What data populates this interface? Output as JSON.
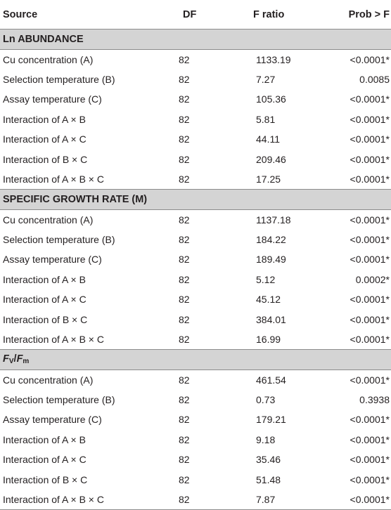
{
  "headers": {
    "source": "Source",
    "df": "DF",
    "f_ratio": "F ratio",
    "prob": "Prob > F"
  },
  "sections": [
    {
      "title": "Ln ABUNDANCE",
      "rows": [
        {
          "source": "Cu concentration (A)",
          "df": "82",
          "f": "1133.19",
          "p": "<0.0001*"
        },
        {
          "source": "Selection temperature (B)",
          "df": "82",
          "f": "7.27",
          "p": "0.0085"
        },
        {
          "source": "Assay temperature (C)",
          "df": "82",
          "f": "105.36",
          "p": "<0.0001*"
        },
        {
          "source": "Interaction of A × B",
          "df": "82",
          "f": "5.81",
          "p": "<0.0001*"
        },
        {
          "source": "Interaction of A × C",
          "df": "82",
          "f": "44.11",
          "p": "<0.0001*"
        },
        {
          "source": "Interaction of B × C",
          "df": "82",
          "f": "209.46",
          "p": "<0.0001*"
        },
        {
          "source": "Interaction of A × B × C",
          "df": "82",
          "f": "17.25",
          "p": "<0.0001*"
        }
      ]
    },
    {
      "title": "SPECIFIC GROWTH RATE (M)",
      "rows": [
        {
          "source": "Cu concentration (A)",
          "df": "82",
          "f": "1137.18",
          "p": "<0.0001*"
        },
        {
          "source": "Selection temperature (B)",
          "df": "82",
          "f": "184.22",
          "p": "<0.0001*"
        },
        {
          "source": "Assay temperature (C)",
          "df": "82",
          "f": "189.49",
          "p": "<0.0001*"
        },
        {
          "source": "Interaction of A × B",
          "df": "82",
          "f": "5.12",
          "p": "0.0002*"
        },
        {
          "source": "Interaction of A × C",
          "df": "82",
          "f": "45.12",
          "p": "<0.0001*"
        },
        {
          "source": "Interaction of B × C",
          "df": "82",
          "f": "384.01",
          "p": "<0.0001*"
        },
        {
          "source": "Interaction of A × B × C",
          "df": "82",
          "f": "16.99",
          "p": "<0.0001*"
        }
      ]
    },
    {
      "title_parts": {
        "f1": "F",
        "s1": "V",
        "slash": "/",
        "f2": "F",
        "s2": "m"
      },
      "rows": [
        {
          "source": "Cu concentration (A)",
          "df": "82",
          "f": "461.54",
          "p": "<0.0001*"
        },
        {
          "source": "Selection temperature (B)",
          "df": "82",
          "f": "0.73",
          "p": "0.3938"
        },
        {
          "source": "Assay temperature (C)",
          "df": "82",
          "f": "179.21",
          "p": "<0.0001*"
        },
        {
          "source": "Interaction of A × B",
          "df": "82",
          "f": "9.18",
          "p": "<0.0001*"
        },
        {
          "source": "Interaction of A × C",
          "df": "82",
          "f": "35.46",
          "p": "<0.0001*"
        },
        {
          "source": "Interaction of B × C",
          "df": "82",
          "f": "51.48",
          "p": "<0.0001*"
        },
        {
          "source": "Interaction of A × B × C",
          "df": "82",
          "f": "7.87",
          "p": "<0.0001*"
        }
      ]
    }
  ]
}
